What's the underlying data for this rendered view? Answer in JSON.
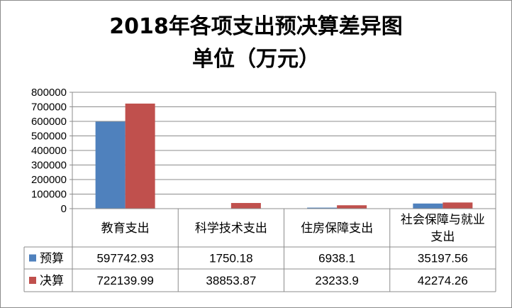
{
  "chart_data": {
    "type": "bar",
    "title": "2018年各项支出预决算差异图",
    "subtitle": "单位（万元）",
    "categories": [
      "教育支出",
      "科学技术支出",
      "住房保障支出",
      "社会保障与就业支出"
    ],
    "category_lines": [
      [
        "教育支出"
      ],
      [
        "科学技术支出"
      ],
      [
        "住房保障支出"
      ],
      [
        "社会保障与就业",
        "支出"
      ]
    ],
    "series": [
      {
        "name": "预算",
        "values": [
          597742.93,
          1750.18,
          6938.1,
          35197.56
        ],
        "labels": [
          "597742.93",
          "1750.18",
          "6938.1",
          "35197.56"
        ],
        "color": "#4f81bd"
      },
      {
        "name": "决算",
        "values": [
          722139.99,
          38853.87,
          23233.9,
          42274.26
        ],
        "labels": [
          "722139.99",
          "38853.87",
          "23233.9",
          "42274.26"
        ],
        "color": "#c0504d"
      }
    ],
    "ylim": [
      0,
      800000
    ],
    "yticks": [
      0,
      100000,
      200000,
      300000,
      400000,
      500000,
      600000,
      700000,
      800000
    ],
    "ytick_labels": [
      "0",
      "100000",
      "200000",
      "300000",
      "400000",
      "500000",
      "600000",
      "700000",
      "800000"
    ],
    "grid": true,
    "legend": "data-table",
    "xlabel": "",
    "ylabel": ""
  }
}
